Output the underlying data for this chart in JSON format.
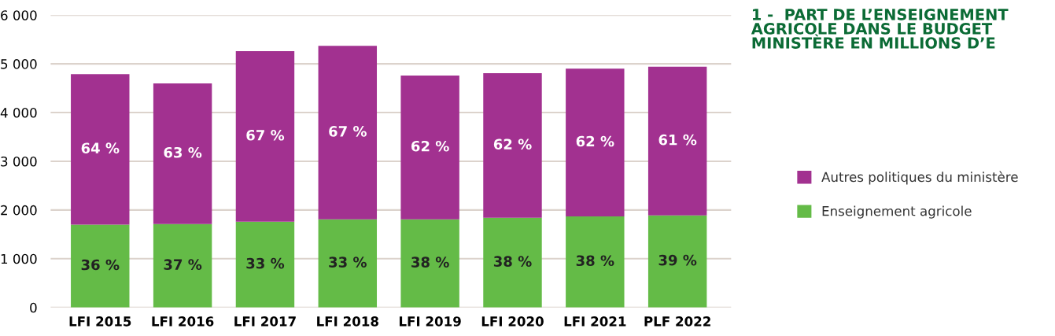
{
  "chart_data": {
    "type": "bar",
    "stacked": true,
    "title": "1 -  PART DE L’ENSEIGNEMENT\nAGRICOLE DANS LE BUDGET\nMINISTÈRE EN MILLIONS D’E",
    "categories": [
      "LFI 2015",
      "LFI 2016",
      "LFI 2017",
      "LFI 2018",
      "LFI 2019",
      "LFI 2020",
      "LFI 2021",
      "PLF 2022"
    ],
    "series": [
      {
        "name": "Enseignement agricole",
        "color": "#64bb47",
        "values": [
          1700,
          1710,
          1760,
          1810,
          1810,
          1840,
          1870,
          1890
        ]
      },
      {
        "name": "Autres politiques du ministère",
        "color": "#a23190",
        "values": [
          3090,
          2890,
          3500,
          3560,
          2950,
          2970,
          3030,
          3050
        ]
      }
    ],
    "annotations": [
      "36 %",
      "37 %",
      "33 %",
      "33 %",
      "38 %",
      "38 %",
      "38 %",
      "39 %",
      "64 %",
      "63 %",
      "67 %",
      "67 %",
      "62 %",
      "62 %",
      "62 %",
      "61 %"
    ],
    "ylim": [
      0,
      6000
    ],
    "yticks": [
      {
        "value": 0,
        "label": "0"
      },
      {
        "value": 1000,
        "label": "1 000"
      },
      {
        "value": 2000,
        "label": "2 000"
      },
      {
        "value": 3000,
        "label": "3 000"
      },
      {
        "value": 4000,
        "label": "4 000"
      },
      {
        "value": 5000,
        "label": "5 000"
      },
      {
        "value": 6000,
        "label": "6 000"
      }
    ],
    "grid": "y",
    "legend": "right"
  }
}
